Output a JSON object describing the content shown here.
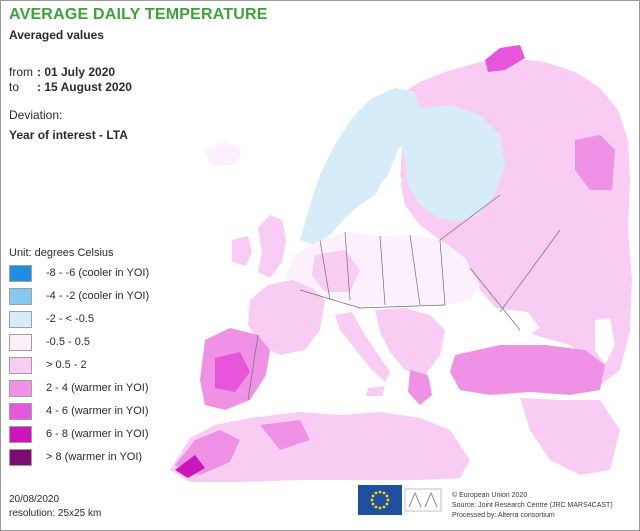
{
  "title": "AVERAGE DAILY TEMPERATURE",
  "subtitle": "Averaged values",
  "period": {
    "from_label": "from",
    "from_value": ": 01 July 2020",
    "to_label": "to",
    "to_value": ": 15 August 2020"
  },
  "deviation_label": "Deviation:",
  "deviation_value": "Year of interest - LTA",
  "legend": {
    "unit": "Unit: degrees Celsius",
    "items": [
      {
        "label": "-8 - -6 (cooler in YOI)",
        "color": "#1e8fe0"
      },
      {
        "label": "-4 - -2 (cooler in YOI)",
        "color": "#86c9f0"
      },
      {
        "label": "-2 - < -0.5",
        "color": "#d6ecf8"
      },
      {
        "label": "-0.5 - 0.5",
        "color": "#fbf0fb"
      },
      {
        "label": "> 0.5 - 2",
        "color": "#f8ccf3"
      },
      {
        "label": "2 - 4 (warmer in YOI)",
        "color": "#ef92e6"
      },
      {
        "label": "4 - 6 (warmer in YOI)",
        "color": "#e655da"
      },
      {
        "label": "6 - 8 (warmer in YOI)",
        "color": "#cc16bb"
      },
      {
        "label": "> 8 (warmer in YOI)",
        "color": "#7d0b72"
      }
    ]
  },
  "footer": {
    "date": "20/08/2020",
    "resolution": "resolution: 25x25 km",
    "credits": [
      "© European Union 2020",
      "Source: Joint Research Centre (JRC MARS4CAST)",
      "Processed by: Alterra consortium"
    ]
  },
  "colors": {
    "title": "#3ea23a",
    "sea": "#ffffff",
    "border_lines": "#707070",
    "eu_blue": "#1f4fa0",
    "eu_stars": "#ffd400"
  }
}
